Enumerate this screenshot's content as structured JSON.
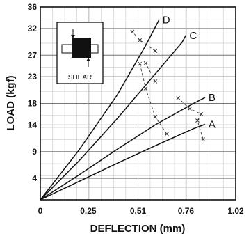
{
  "chart_data": {
    "type": "line",
    "xlabel": "DEFLECTION (mm)",
    "ylabel": "LOAD (kgf)",
    "xlim": [
      0,
      1.02
    ],
    "ylim": [
      0,
      36
    ],
    "x_ticks": [
      0,
      0.25,
      0.51,
      0.76,
      1.02
    ],
    "x_tick_labels": [
      "0",
      "0.25",
      "0.51",
      "0.76",
      "1.02"
    ],
    "y_ticks": [
      4,
      9,
      14,
      18,
      23,
      27,
      32,
      36
    ],
    "y_tick_labels": [
      "4",
      "9",
      "14",
      "18",
      "23",
      "27",
      "32",
      "36"
    ],
    "minor_grid_x_step": 0.0637,
    "minor_grid_y_step": 2.25,
    "grid": true,
    "legend": "none",
    "inset_label": "SHEAR",
    "series": [
      {
        "name": "A",
        "points": [
          [
            0,
            0
          ],
          [
            0.2,
            3.4
          ],
          [
            0.4,
            6.8
          ],
          [
            0.6,
            10.1
          ],
          [
            0.8,
            13.3
          ],
          [
            0.86,
            14.1
          ]
        ]
      },
      {
        "name": "B",
        "points": [
          [
            0,
            0
          ],
          [
            0.2,
            4.6
          ],
          [
            0.4,
            9.4
          ],
          [
            0.6,
            14.0
          ],
          [
            0.8,
            18.0
          ],
          [
            0.86,
            19.1
          ]
        ]
      },
      {
        "name": "C",
        "points": [
          [
            0,
            0
          ],
          [
            0.2,
            7.2
          ],
          [
            0.4,
            15.1
          ],
          [
            0.6,
            23.5
          ],
          [
            0.74,
            29.4
          ],
          [
            0.76,
            30.7
          ]
        ]
      },
      {
        "name": "D",
        "points": [
          [
            0,
            0
          ],
          [
            0.2,
            9.2
          ],
          [
            0.4,
            19.5
          ],
          [
            0.55,
            28.8
          ],
          [
            0.62,
            33.6
          ]
        ]
      }
    ],
    "failure_bands": [
      {
        "points": [
          [
            0.85,
            11.3
          ],
          [
            0.82,
            14.8
          ],
          [
            0.84,
            16.0
          ],
          [
            0.78,
            17.0
          ],
          [
            0.72,
            19.0
          ]
        ]
      },
      {
        "points": [
          [
            0.66,
            12.3
          ],
          [
            0.6,
            15.5
          ],
          [
            0.55,
            20.8
          ],
          [
            0.52,
            25.4
          ]
        ]
      },
      {
        "points": [
          [
            0.6,
            22.1
          ],
          [
            0.55,
            25.5
          ]
        ]
      },
      {
        "points": [
          [
            0.6,
            27.8
          ],
          [
            0.52,
            29.8
          ],
          [
            0.48,
            31.4
          ]
        ]
      }
    ]
  }
}
